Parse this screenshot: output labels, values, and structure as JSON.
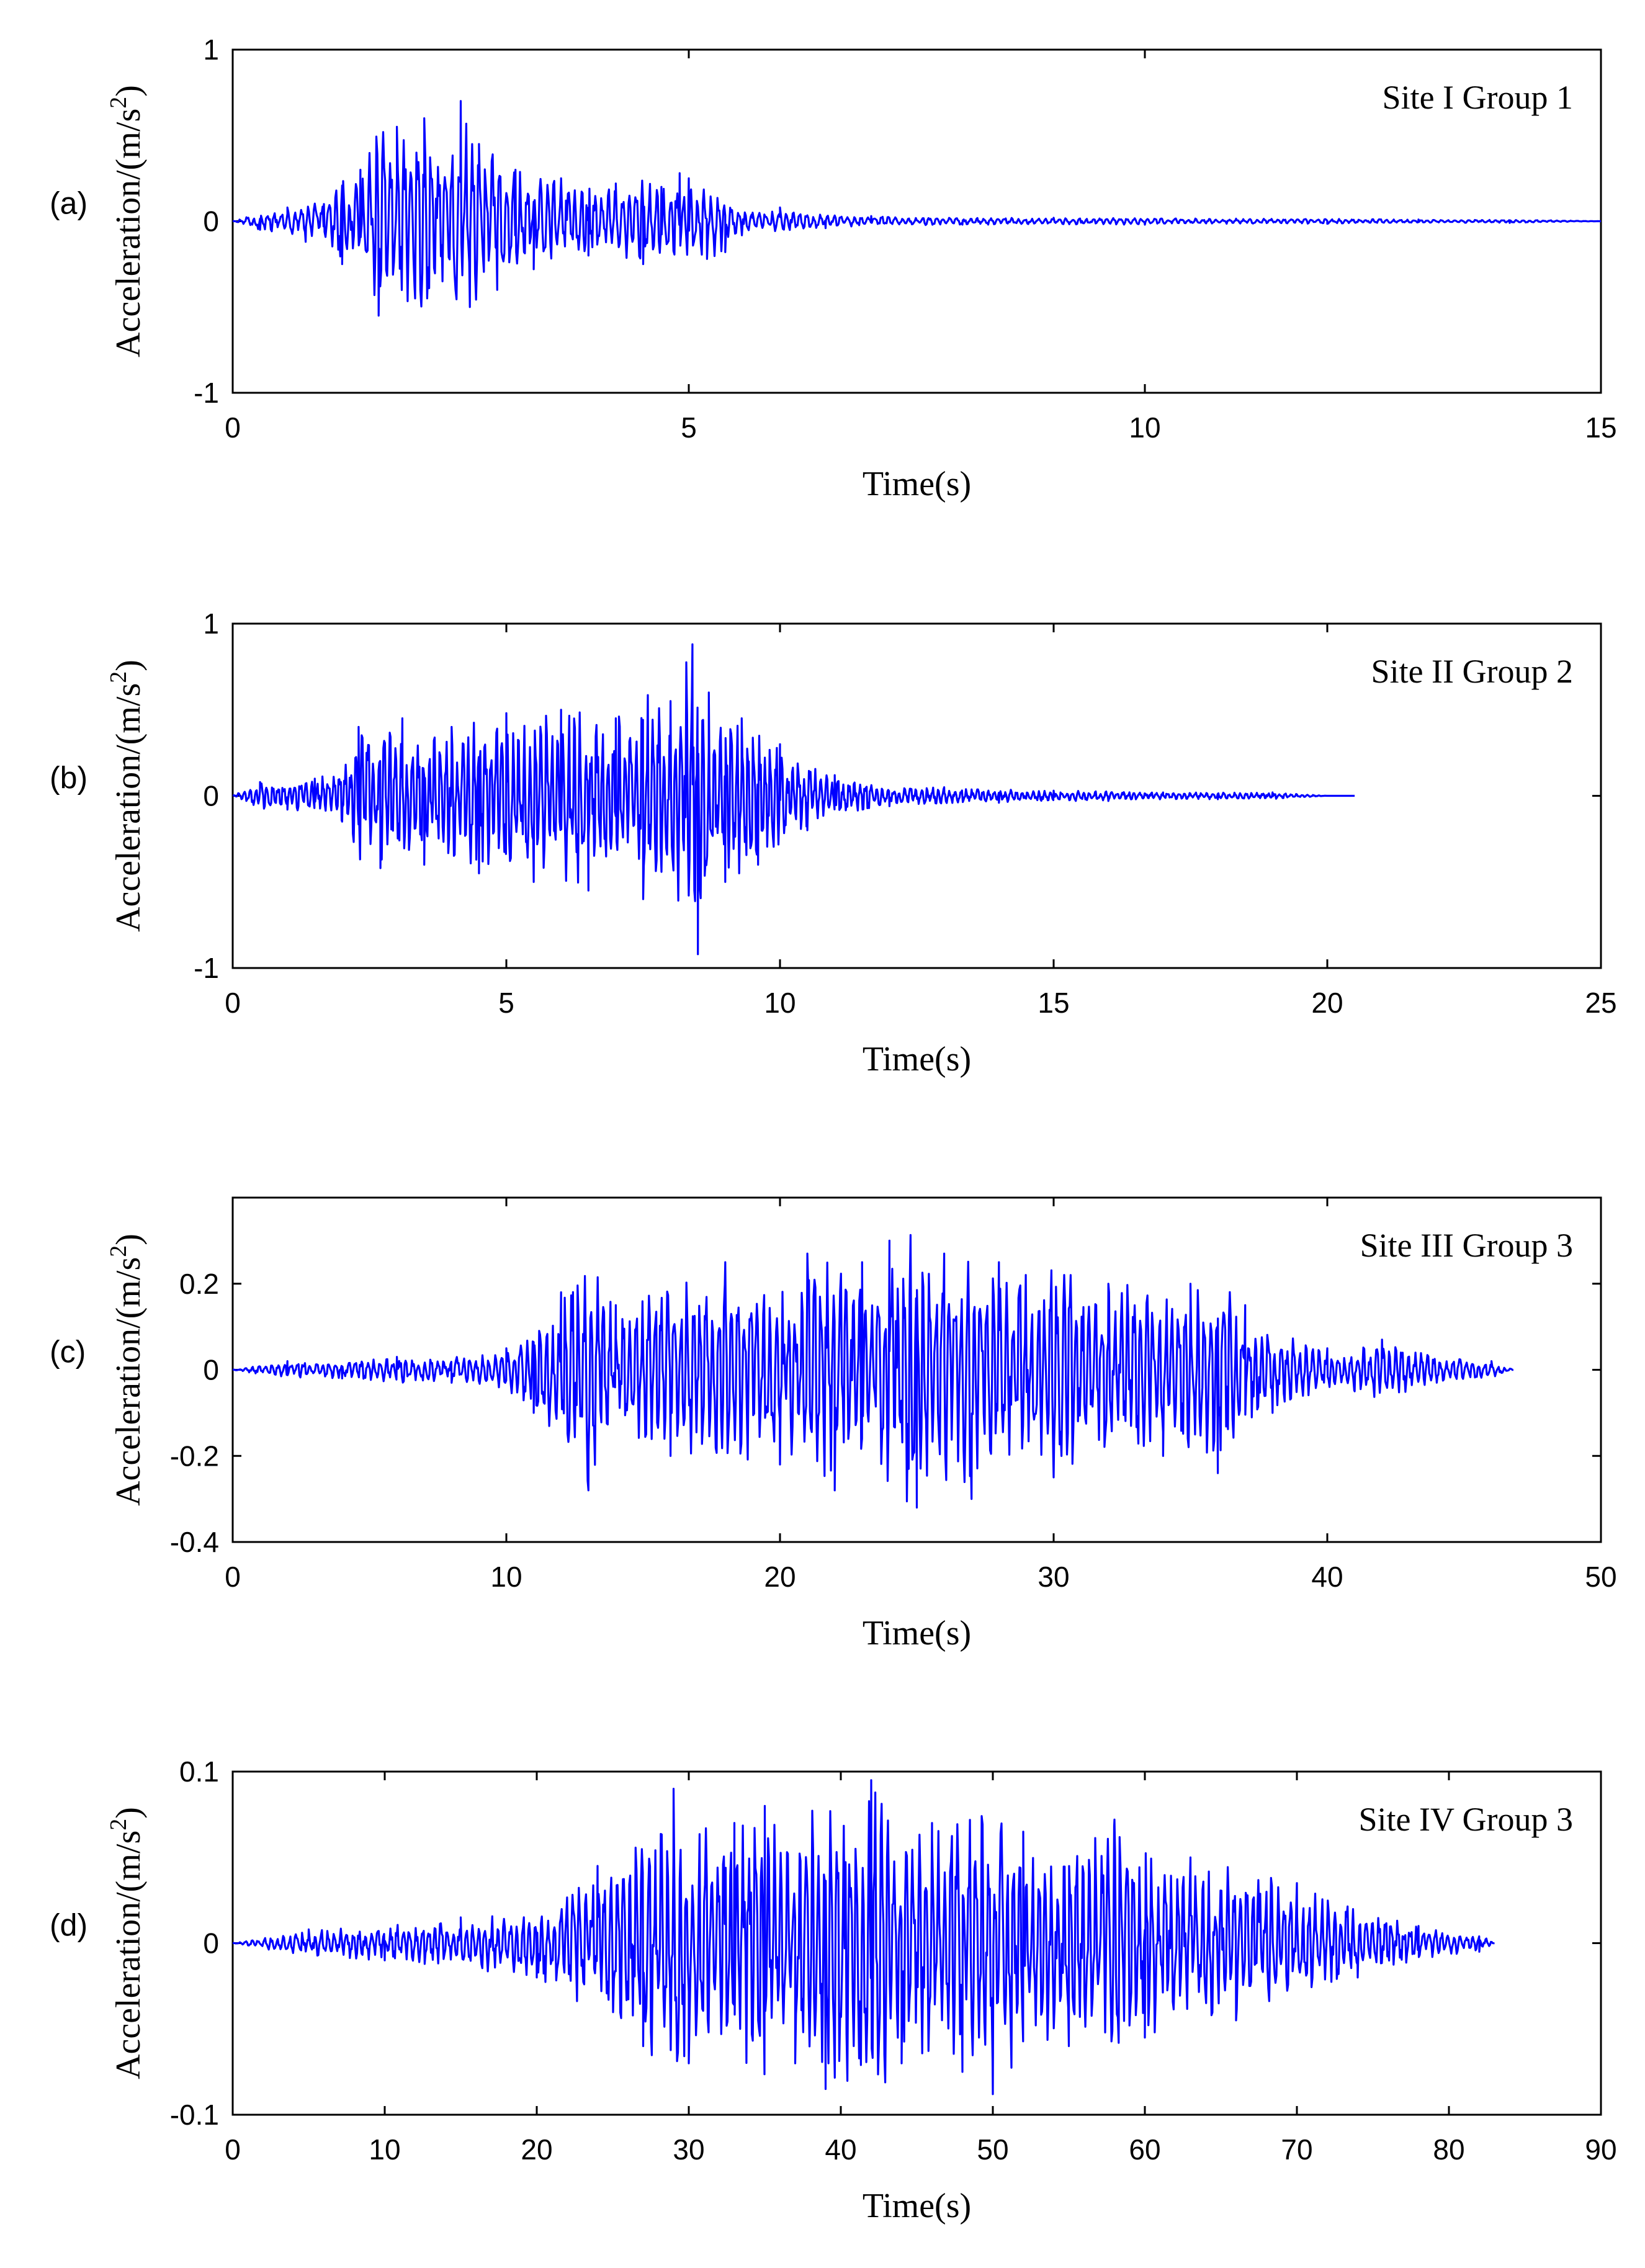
{
  "figure": {
    "line_color": "#0000ff",
    "axis_color": "#000000"
  },
  "chart_data": [
    {
      "type": "line",
      "panel_label": "(a)",
      "annotation": "Site I Group 1",
      "xlabel": "Time(s)",
      "ylabel_main": "Acceleration/(m/s",
      "ylabel_sup": "2",
      "ylabel_end": ")",
      "xlim": [
        0,
        15
      ],
      "ylim": [
        -1,
        1
      ],
      "xticks": [
        0,
        5,
        10,
        15
      ],
      "xtick_labels": [
        "0",
        "5",
        "10",
        "15"
      ],
      "yticks": [
        -1,
        0,
        1
      ],
      "ytick_labels": [
        "-1",
        "0",
        "1"
      ],
      "series": [
        {
          "name": "Acceleration",
          "x": [
            0,
            0.3,
            0.6,
            0.8,
            1.0,
            1.2,
            1.4,
            1.6,
            1.8,
            2.0,
            2.1,
            2.3,
            2.5,
            2.6,
            2.7,
            2.9,
            3.1,
            3.3,
            3.6,
            3.9,
            4.2,
            4.5,
            4.7,
            4.9,
            5.0,
            5.2,
            5.4,
            5.7,
            6.0,
            6.5,
            7.0,
            8.0,
            9.0,
            10.0,
            11.0,
            12.0,
            13.0,
            14.0,
            15.0
          ],
          "y": [
            0.0,
            -0.05,
            0.08,
            -0.12,
            0.1,
            -0.25,
            0.3,
            -0.55,
            0.55,
            -0.45,
            0.6,
            -0.35,
            0.7,
            -0.5,
            0.45,
            -0.4,
            0.3,
            -0.28,
            0.25,
            -0.2,
            0.22,
            -0.25,
            0.2,
            0.28,
            0.25,
            -0.22,
            -0.18,
            0.05,
            0.08,
            -0.04,
            0.03,
            -0.02,
            0.02,
            -0.02,
            0.015,
            -0.015,
            0.01,
            -0.01,
            0.0
          ]
        }
      ]
    },
    {
      "type": "line",
      "panel_label": "(b)",
      "annotation": "Site II Group 2",
      "xlabel": "Time(s)",
      "ylabel_main": "Acceleration/(m/s",
      "ylabel_sup": "2",
      "ylabel_end": ")",
      "xlim": [
        0,
        25
      ],
      "ylim": [
        -1,
        1
      ],
      "xticks": [
        0,
        5,
        10,
        15,
        20,
        25
      ],
      "xtick_labels": [
        "0",
        "5",
        "10",
        "15",
        "20",
        "25"
      ],
      "yticks": [
        -1,
        0,
        1
      ],
      "ytick_labels": [
        "-1",
        "0",
        "1"
      ],
      "series": [
        {
          "name": "Acceleration",
          "x": [
            0,
            0.5,
            1.0,
            1.5,
            2.0,
            2.3,
            2.7,
            3.1,
            3.5,
            4.0,
            4.5,
            5.0,
            5.5,
            6.0,
            6.5,
            7.0,
            7.5,
            8.0,
            8.4,
            8.5,
            8.7,
            9.0,
            9.3,
            9.6,
            10.0,
            10.5,
            11.0,
            12.0,
            13.0,
            14.0,
            15.0,
            16.0,
            17.0,
            18.0,
            19.0,
            20.0,
            20.5
          ],
          "y": [
            0.0,
            0.08,
            -0.08,
            0.1,
            -0.15,
            0.4,
            -0.42,
            0.45,
            -0.4,
            0.4,
            -0.45,
            0.48,
            -0.5,
            0.5,
            -0.55,
            0.45,
            -0.6,
            0.55,
            0.88,
            -0.92,
            0.6,
            -0.5,
            0.45,
            -0.4,
            0.3,
            -0.2,
            0.12,
            -0.06,
            0.05,
            -0.04,
            0.03,
            -0.03,
            0.02,
            -0.02,
            0.02,
            0.0,
            0.0
          ]
        }
      ]
    },
    {
      "type": "line",
      "panel_label": "(c)",
      "annotation": "Site III Group 3",
      "xlabel": "Time(s)",
      "ylabel_main": "Acceleration/(m/s",
      "ylabel_sup": "2",
      "ylabel_end": ")",
      "xlim": [
        0,
        50
      ],
      "ylim": [
        -0.4,
        0.4
      ],
      "xticks": [
        0,
        10,
        20,
        30,
        40,
        50
      ],
      "xtick_labels": [
        "0",
        "10",
        "20",
        "30",
        "40",
        "50"
      ],
      "yticks": [
        -0.4,
        -0.2,
        0,
        0.2
      ],
      "ytick_labels": [
        "-0.4",
        "-0.2",
        "0",
        "0.2"
      ],
      "series": [
        {
          "name": "Acceleration",
          "x": [
            0,
            2,
            4,
            6,
            8,
            10,
            11,
            12,
            13,
            14,
            16,
            18,
            20,
            21,
            22,
            23,
            24,
            25,
            26,
            27,
            28,
            30,
            32,
            34,
            35,
            36,
            37,
            38,
            40,
            41,
            42,
            44,
            46,
            46.8
          ],
          "y": [
            0.0,
            0.02,
            -0.02,
            0.03,
            -0.03,
            0.05,
            -0.1,
            0.18,
            -0.28,
            0.15,
            -0.2,
            0.25,
            -0.22,
            0.27,
            -0.28,
            0.25,
            0.3,
            -0.32,
            0.27,
            -0.3,
            0.25,
            -0.25,
            0.2,
            -0.2,
            0.2,
            -0.24,
            0.15,
            -0.1,
            0.05,
            -0.05,
            0.07,
            -0.03,
            0.02,
            0.0
          ]
        }
      ]
    },
    {
      "type": "line",
      "panel_label": "(d)",
      "annotation": "Site IV Group 3",
      "xlabel": "Time(s)",
      "ylabel_main": "Acceleration/(m/s",
      "ylabel_sup": "2",
      "ylabel_end": ")",
      "xlim": [
        0,
        90
      ],
      "ylim": [
        -0.1,
        0.1
      ],
      "xticks": [
        0,
        10,
        20,
        30,
        40,
        50,
        60,
        70,
        80,
        90
      ],
      "xtick_labels": [
        "0",
        "10",
        "20",
        "30",
        "40",
        "50",
        "60",
        "70",
        "80",
        "90"
      ],
      "yticks": [
        -0.1,
        0,
        0.1
      ],
      "ytick_labels": [
        "-0.1",
        "0",
        "0.1"
      ],
      "series": [
        {
          "name": "Acceleration",
          "x": [
            0,
            5,
            10,
            15,
            20,
            24,
            27,
            29,
            30,
            33,
            35,
            37,
            39,
            42,
            44,
            46,
            48,
            50,
            52,
            55,
            58,
            60,
            63,
            66,
            70,
            74,
            78,
            82,
            83
          ],
          "y": [
            0.0,
            0.008,
            -0.01,
            0.015,
            -0.02,
            0.045,
            -0.06,
            0.09,
            -0.07,
            0.07,
            0.08,
            -0.07,
            -0.085,
            0.095,
            -0.07,
            0.07,
            -0.075,
            -0.088,
            0.065,
            -0.06,
            0.072,
            -0.055,
            0.05,
            -0.045,
            0.035,
            -0.02,
            0.01,
            -0.005,
            0.0
          ]
        }
      ]
    }
  ]
}
